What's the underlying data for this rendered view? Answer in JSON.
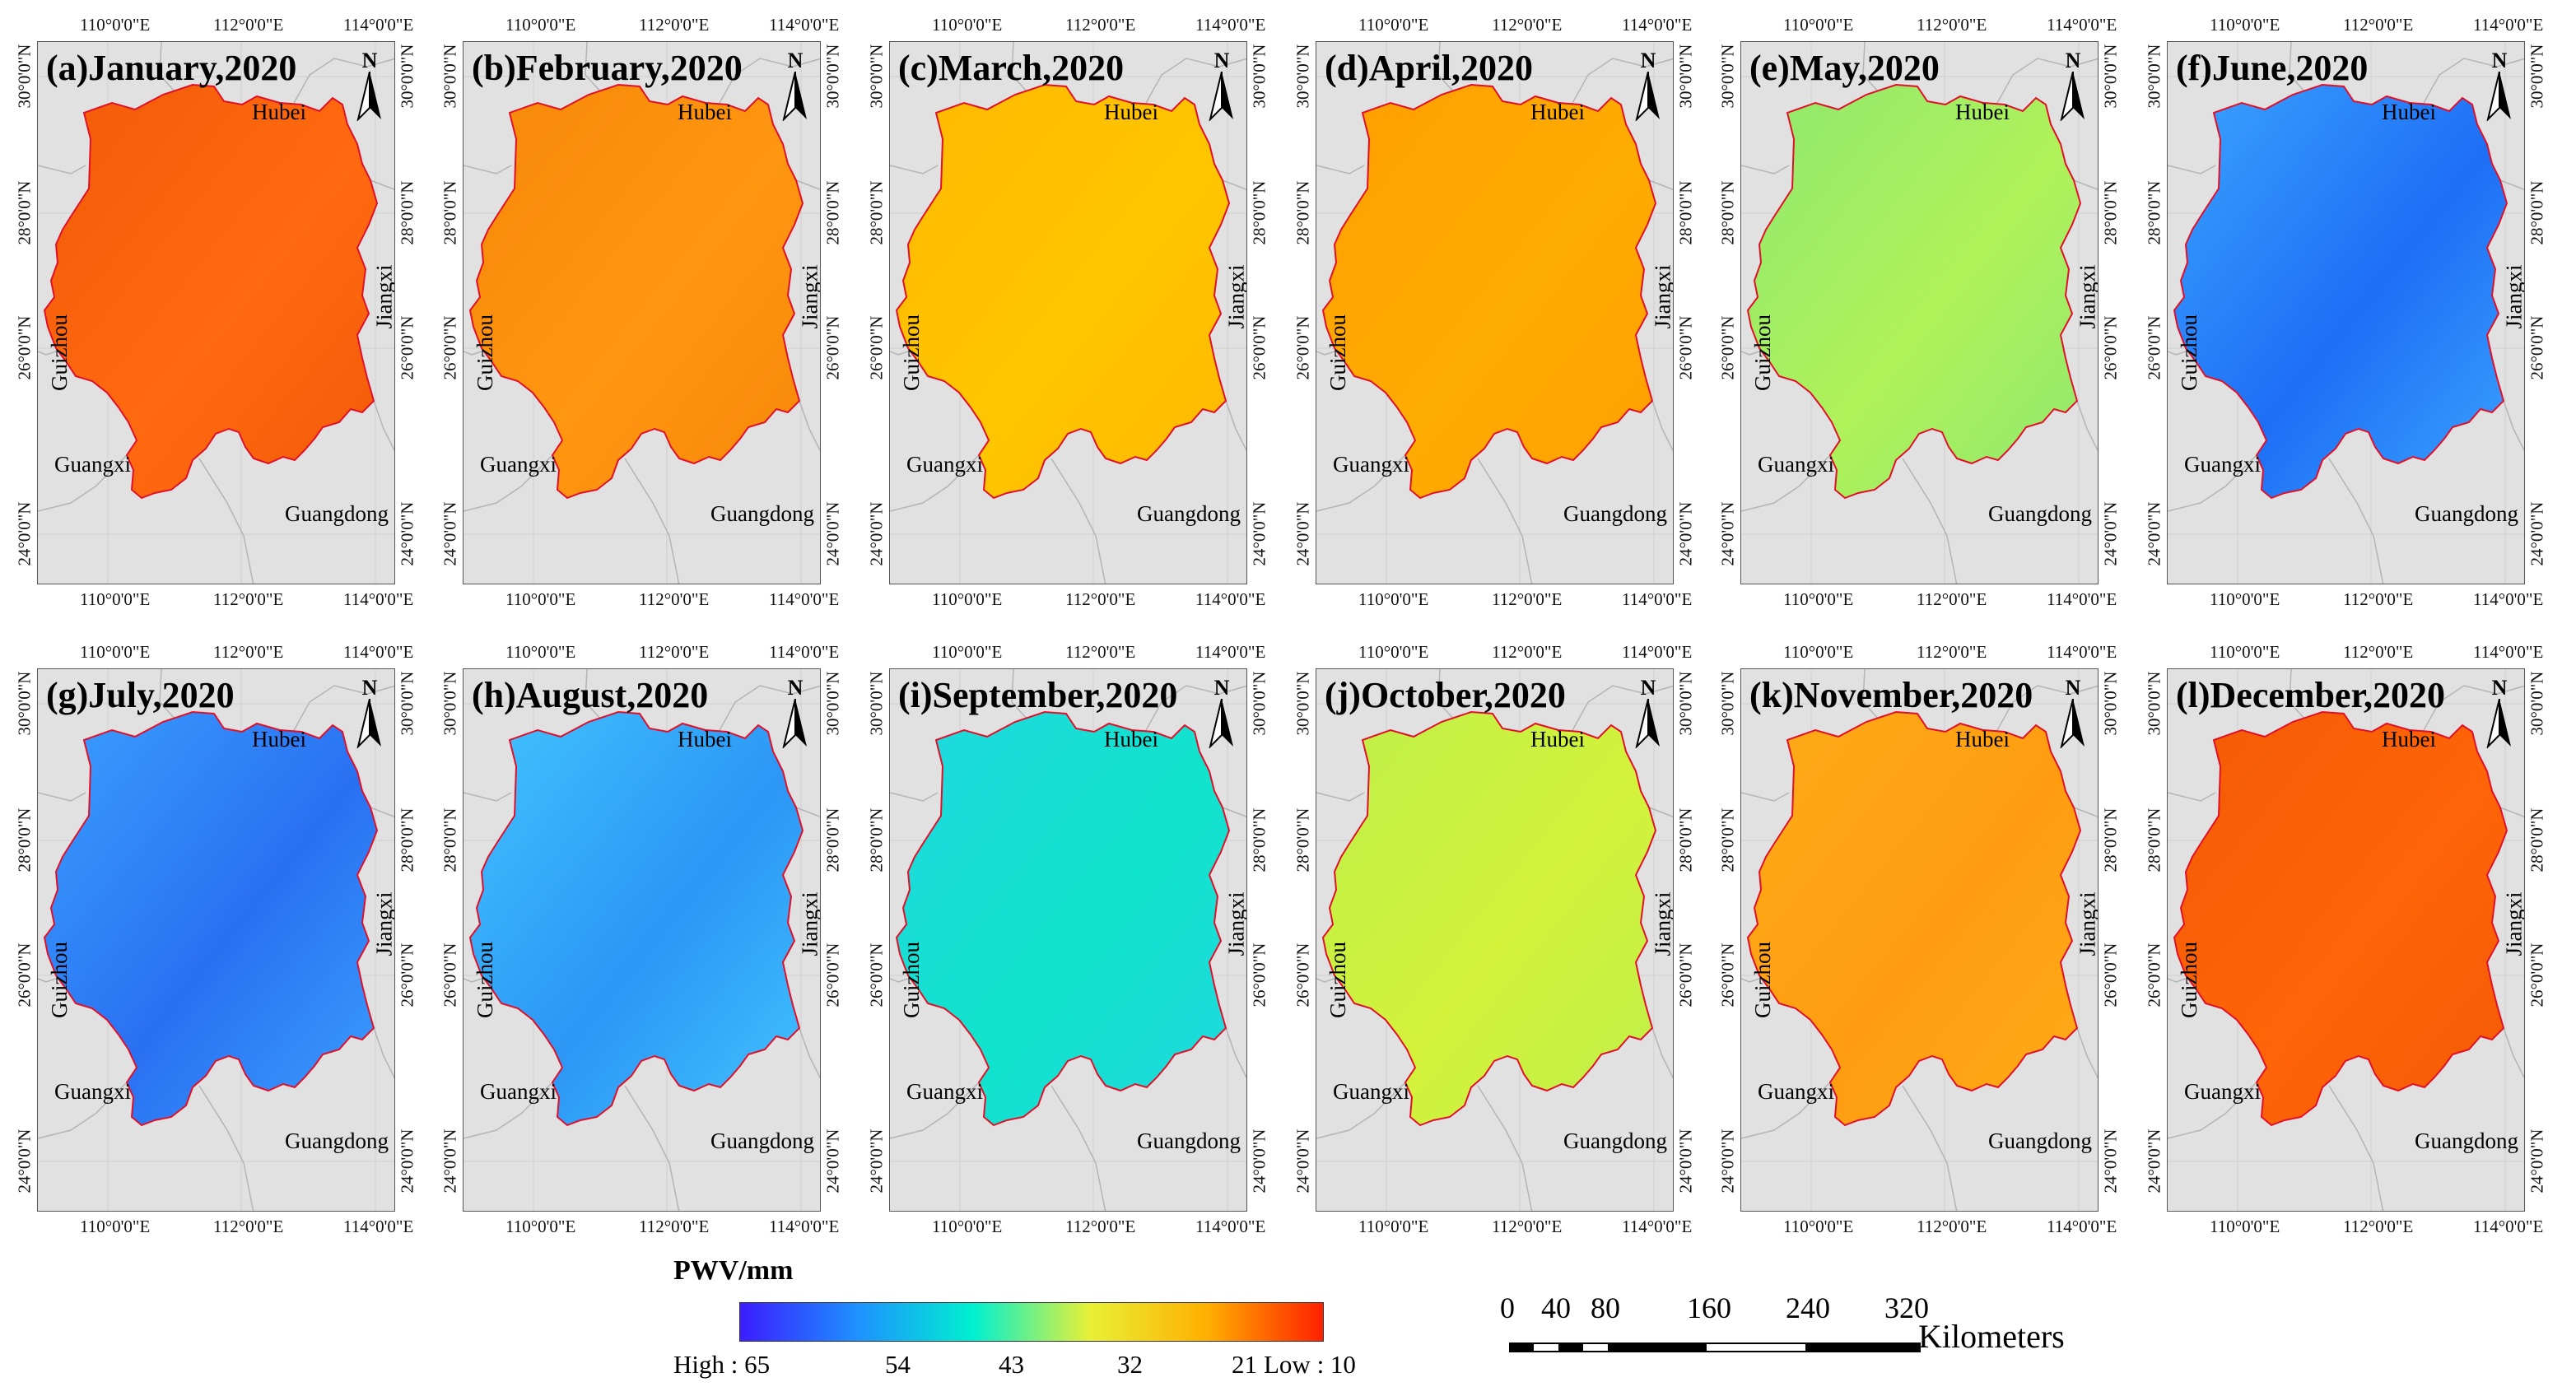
{
  "legend": {
    "title": "PWV/mm",
    "labels": [
      "High : 65",
      "54",
      "43",
      "32",
      "21",
      "Low : 10"
    ],
    "colors": [
      "#3b1cff",
      "#1e90ff",
      "#00f0d0",
      "#e8f036",
      "#ffb000",
      "#ff2000"
    ]
  },
  "scalebar": {
    "labels": [
      "0",
      "40",
      "80",
      "160",
      "240",
      "320"
    ],
    "unit": "Kilometers"
  },
  "axes": {
    "x_labels": [
      "110°0'0\"E",
      "112°0'0\"E",
      "114°0'0\"E"
    ],
    "y_labels": [
      "30°0'0\"N",
      "28°0'0\"N",
      "26°0'0\"N",
      "24°0'0\"N"
    ]
  },
  "north_label": "N",
  "neighbors": {
    "north": "Hubei",
    "east": "Jiangxi",
    "west": "Guizhou",
    "southwest": "Guangxi",
    "south": "Guangdong"
  },
  "panels": [
    {
      "title": "(a)January,2020",
      "fill": "#ff6a10",
      "tone": "#f25a08"
    },
    {
      "title": "(b)February,2020",
      "fill": "#ff9610",
      "tone": "#f58808"
    },
    {
      "title": "(c)March,2020",
      "fill": "#ffc600",
      "tone": "#ffb800"
    },
    {
      "title": "(d)April,2020",
      "fill": "#ffac00",
      "tone": "#ff9e00"
    },
    {
      "title": "(e)May,2020",
      "fill": "#b0f25a",
      "tone": "#8ee86e"
    },
    {
      "title": "(f)June,2020",
      "fill": "#1e6ef5",
      "tone": "#3aa4ff"
    },
    {
      "title": "(g)July,2020",
      "fill": "#2a70f2",
      "tone": "#3aa0ff"
    },
    {
      "title": "(h)August,2020",
      "fill": "#2c96f5",
      "tone": "#42c4ff"
    },
    {
      "title": "(i)September,2020",
      "fill": "#10e4cc",
      "tone": "#20d8e0"
    },
    {
      "title": "(j)October,2020",
      "fill": "#d4f23a",
      "tone": "#bdf04a"
    },
    {
      "title": "(k)November,2020",
      "fill": "#ff9c10",
      "tone": "#ffac18"
    },
    {
      "title": "(l)December,2020",
      "fill": "#ff6408",
      "tone": "#f25a04"
    }
  ]
}
